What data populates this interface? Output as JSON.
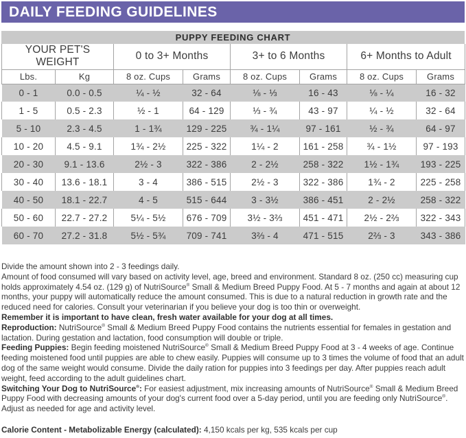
{
  "banner": {
    "title": "DAILY FEEDING GUIDELINES"
  },
  "chart_bar": {
    "title": "PUPPY FEEDING CHART"
  },
  "colors": {
    "banner_bg": "#6a63a9",
    "banner_text": "#ffffff",
    "chart_bar_bg": "#c9c9c9",
    "row_stripe_bg": "#cbcbcb",
    "table_border": "#a3a3a3",
    "body_text": "#3b3b3b"
  },
  "table": {
    "group_headers": [
      "YOUR PET'S WEIGHT",
      "0 to 3+ Months",
      "3+ to 6 Months",
      "6+ Months to Adult"
    ],
    "column_headers": [
      "Lbs.",
      "Kg",
      "8 oz. Cups",
      "Grams",
      "8 oz. Cups",
      "Grams",
      "8 oz. Cups",
      "Grams"
    ],
    "rows": [
      [
        "0 - 1",
        "0.0 - 0.5",
        "¼ - ½",
        "32 - 64",
        "⅛ - ⅓",
        "16 - 43",
        "⅛ - ¼",
        "16 - 32"
      ],
      [
        "1 - 5",
        "0.5 - 2.3",
        "½ - 1",
        "64 - 129",
        "⅓ - ¾",
        "43 - 97",
        "¼ - ½",
        "32 - 64"
      ],
      [
        "5 - 10",
        "2.3 - 4.5",
        "1 - 1¾",
        "129 - 225",
        "¾ - 1¼",
        "97 - 161",
        "½ - ¾",
        "64 - 97"
      ],
      [
        "10 - 20",
        "4.5 - 9.1",
        "1¾ - 2½",
        "225 - 322",
        "1¼ - 2",
        "161 - 258",
        "¾ - 1½",
        "97 - 193"
      ],
      [
        "20 - 30",
        "9.1 - 13.6",
        "2½ - 3",
        "322 - 386",
        "2 - 2½",
        "258 - 322",
        "1½ - 1¾",
        "193 - 225"
      ],
      [
        "30 - 40",
        "13.6 - 18.1",
        "3 - 4",
        "386 - 515",
        "2½ - 3",
        "322 - 386",
        "1¾ - 2",
        "225 - 258"
      ],
      [
        "40 - 50",
        "18.1 - 22.7",
        "4 - 5",
        "515 - 644",
        "3 - 3½",
        "386 - 451",
        "2 - 2½",
        "258 - 322"
      ],
      [
        "50 - 60",
        "22.7 - 27.2",
        "5¼ - 5½",
        "676 - 709",
        "3½ - 3⅔",
        "451 - 471",
        "2½ - 2⅔",
        "322 - 343"
      ],
      [
        "60 - 70",
        "27.2 - 31.8",
        "5½ - 5¾",
        "709 - 741",
        "3⅔ - 4",
        "471 - 515",
        "2⅔ - 3",
        "343 - 386"
      ]
    ]
  },
  "notes": {
    "divide": "Divide the amount shown into 2 - 3 feedings daily.",
    "amount": "Amount of food consumed will vary based on activity level, age, breed and environment. Standard 8 oz. (250 cc) measuring cup holds approximately 4.54 oz. (129 g) of NutriSource® Small & Medium Breed Puppy Food. At 5 - 7 months and again at about 12 months, your puppy will automatically reduce the amount consumed. This is due to a natural reduction in growth rate and the reduced need for calories. Consult your veterinarian if you believe your dog is too thin or overweight.",
    "water_bold": "Remember it is important to have clean, fresh water available for your dog at all times.",
    "reproduction_bold": "Reproduction:",
    "reproduction_text": " NutriSource® Small & Medium Breed Puppy Food contains the nutrients essential for females in gestation and lactation. During gestation and lactation, food consumption will double or triple.",
    "feeding_bold": "Feeding Puppies:",
    "feeding_text": " Begin feeding moistened NutriSource® Small & Medium Breed Puppy Food at 3 - 4 weeks of age. Continue feeding moistened food until puppies are able to chew easily. Puppies will consume up to 3 times the volume of food that an adult dog of the same weight would consume. Divide the daily ration for puppies into 3 feedings per day. After puppies reach adult weight, feed according to the adult guidelines chart.",
    "switching_bold": "Switching Your Dog to NutriSource®:",
    "switching_text": " For easiest adjustment, mix increasing amounts of NutriSource® Small & Medium Breed Puppy Food with decreasing amounts of your dog's current food over a 5-day period, until you are feeding only NutriSource®. Adjust as needed for age and activity level.",
    "calorie_bold": "Calorie Content - Metabolizable Energy (calculated):",
    "calorie_text": " 4,150 kcals per kg, 535 kcals per cup"
  }
}
